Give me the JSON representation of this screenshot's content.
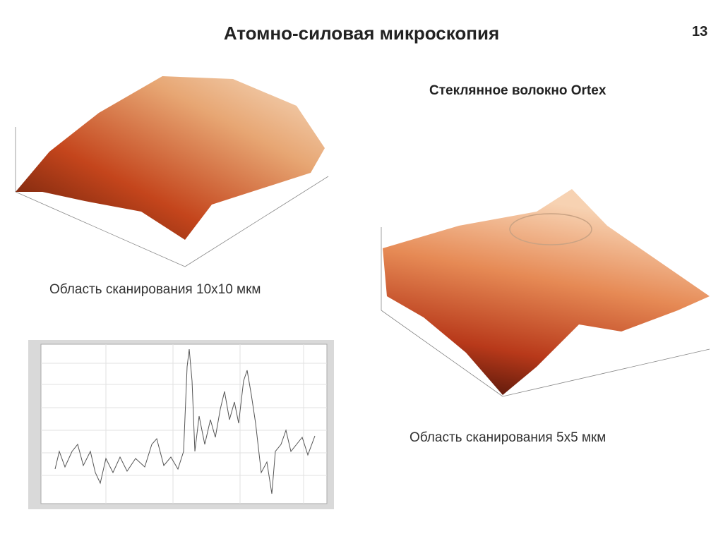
{
  "header": {
    "title": "Атомно-силовая микроскопия",
    "page_number": "13"
  },
  "figure_left": {
    "caption": "Область сканирования 10x10 мкм"
  },
  "figure_right": {
    "title": "Стеклянное волокно Ortex",
    "caption": "Область сканирования 5x5 мкм"
  }
}
